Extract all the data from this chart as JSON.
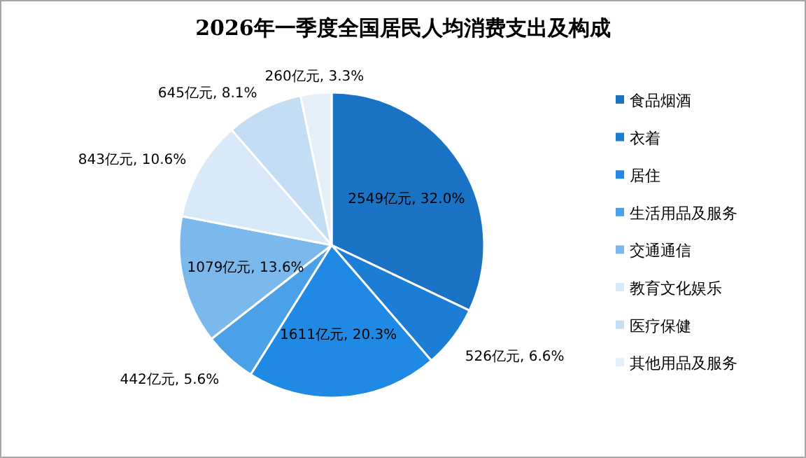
{
  "chart_data": {
    "type": "pie",
    "title": "2026年一季度全国居民人均消费支出及构成",
    "categories": [
      "食品烟酒",
      "衣着",
      "居住",
      "生活用品及服务",
      "交通通信",
      "教育文化娱乐",
      "医疗保健",
      "其他用品及服务"
    ],
    "values": [
      2549,
      526,
      1611,
      442,
      1079,
      843,
      645,
      260
    ],
    "value_labels": [
      "2549亿元, 32.0%",
      "526亿元, 6.6%",
      "1611亿元, 20.3%",
      "442亿元, 5.6%",
      "1079亿元, 13.6%",
      "843亿元, 10.6%",
      "645亿元, 8.1%",
      "260亿元, 3.3%"
    ],
    "colors": [
      "#1a72c4",
      "#1b7dd3",
      "#1f89e3",
      "#4aa1e8",
      "#7bb9ed",
      "#d8e9f9",
      "#c3ddf5",
      "#e4eff9"
    ],
    "legend": "right"
  }
}
